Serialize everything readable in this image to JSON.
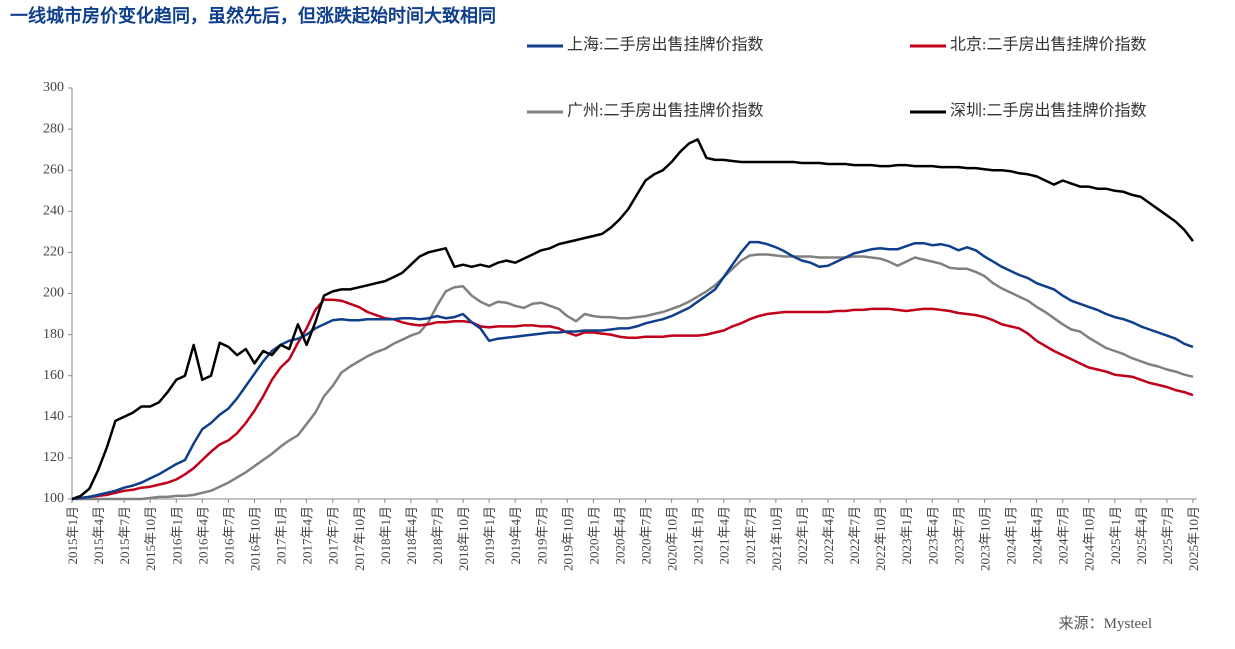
{
  "chart_data": {
    "type": "line",
    "title": "一线城市房价变化趋同，虽然先后，但涨跌起始时间大致相同",
    "source": "来源：Mysteel",
    "categories": [
      "2015年1月",
      null,
      null,
      "2015年4月",
      null,
      null,
      "2015年7月",
      null,
      null,
      "2015年10月",
      null,
      null,
      "2016年1月",
      null,
      null,
      "2016年4月",
      null,
      null,
      "2016年7月",
      null,
      null,
      "2016年10月",
      null,
      null,
      "2017年1月",
      null,
      null,
      "2017年4月",
      null,
      null,
      "2017年7月",
      null,
      null,
      "2017年10月",
      null,
      null,
      "2018年1月",
      null,
      null,
      "2018年4月",
      null,
      null,
      "2018年7月",
      null,
      null,
      "2018年10月",
      null,
      null,
      "2019年1月",
      null,
      null,
      "2019年4月",
      null,
      null,
      "2019年7月",
      null,
      null,
      "2019年10月",
      null,
      null,
      "2020年1月",
      null,
      null,
      "2020年4月",
      null,
      null,
      "2020年7月",
      null,
      null,
      "2020年10月",
      null,
      null,
      "2021年1月",
      null,
      null,
      "2021年4月",
      null,
      null,
      "2021年7月",
      null,
      null,
      "2021年10月",
      null,
      null,
      "2022年1月",
      null,
      null,
      "2022年4月",
      null,
      null,
      "2022年7月",
      null,
      null,
      "2022年10月",
      null,
      null,
      "2023年1月",
      null,
      null,
      "2023年4月",
      null,
      null,
      "2023年7月",
      null,
      null,
      "2023年10月",
      null,
      null,
      "2024年1月",
      null,
      null,
      "2024年4月",
      null,
      null,
      "2024年7月",
      null,
      null,
      "2024年10月",
      null,
      null,
      "2025年1月",
      null,
      null,
      "2025年4月",
      null,
      null,
      "2025年7月",
      null,
      null,
      "2025年10月"
    ],
    "series": [
      {
        "name": "上海:二手房出售挂牌价指数",
        "color": "#0f3f8c",
        "values": [
          100,
          100.5,
          101,
          102,
          103,
          104,
          105.5,
          106.5,
          108,
          110,
          112,
          114.5,
          117,
          119,
          127,
          134,
          137,
          141,
          144,
          149,
          155,
          161,
          167,
          172,
          175,
          177,
          178,
          180,
          183,
          185,
          187,
          187.5,
          187,
          187,
          187.5,
          187.5,
          187.5,
          187.5,
          188,
          188,
          187.5,
          188,
          189,
          188,
          188.5,
          190,
          186,
          183,
          177,
          178,
          178.5,
          179,
          179.5,
          180,
          180.5,
          181,
          181,
          181.5,
          181.5,
          182,
          182,
          182,
          182.5,
          183,
          183,
          184,
          185.5,
          186.5,
          187.5,
          189,
          191,
          193,
          196,
          199,
          202,
          208,
          214,
          220,
          225,
          225,
          224,
          222.5,
          220.5,
          218,
          216,
          215,
          213,
          213.5,
          215.5,
          217.5,
          219.5,
          220.5,
          221.5,
          222,
          221.5,
          221.5,
          223,
          224.5,
          224.5,
          223.5,
          224,
          223,
          221,
          222.5,
          221,
          218,
          215.5,
          213,
          211,
          209,
          207.5,
          205,
          203.5,
          202,
          199,
          196.5,
          195,
          193.5,
          192,
          190,
          188.5,
          187.5,
          186,
          184,
          182.5,
          181,
          179.5,
          178,
          175.5,
          174
        ]
      },
      {
        "name": "北京:二手房出售挂牌价指数",
        "color": "#c0001a",
        "values": [
          100,
          100.5,
          101,
          101.5,
          102,
          103,
          104,
          104.5,
          105.5,
          106,
          107,
          108,
          109.5,
          112,
          115,
          119,
          123,
          126.5,
          128.5,
          132,
          137,
          143,
          150,
          158,
          164,
          168,
          176,
          183,
          192,
          197,
          197,
          196.5,
          195,
          193.5,
          191,
          189.5,
          188,
          187.5,
          186,
          185,
          184.5,
          185,
          186,
          186,
          186.5,
          186.5,
          186,
          184,
          183.5,
          184,
          184,
          184,
          184.5,
          184.5,
          184,
          184,
          183,
          181,
          179.5,
          181,
          181,
          180.5,
          180,
          179,
          178.5,
          178.5,
          179,
          179,
          179,
          179.5,
          179.5,
          179.5,
          179.5,
          180,
          181,
          182,
          184,
          185.5,
          187.5,
          189,
          190,
          190.5,
          191,
          191,
          191,
          191,
          191,
          191,
          191.5,
          191.5,
          192,
          192,
          192.5,
          192.5,
          192.5,
          192,
          191.5,
          192,
          192.5,
          192.5,
          192,
          191.5,
          190.5,
          190,
          189.5,
          188.5,
          187,
          185,
          184,
          183,
          180.5,
          177,
          174.5,
          172,
          170,
          168,
          166,
          164,
          163,
          162,
          160.5,
          160,
          159.5,
          158,
          156.5,
          155.5,
          154.5,
          153,
          152,
          150.5
        ]
      },
      {
        "name": "广州:二手房出售挂牌价指数",
        "color": "#808080",
        "values": [
          100,
          100,
          100,
          100,
          100,
          100,
          100,
          100,
          100,
          100.5,
          101,
          101,
          101.5,
          101.5,
          102,
          103,
          104,
          106,
          108,
          110.5,
          113,
          116,
          119,
          122,
          125.5,
          128.5,
          131,
          136.5,
          142,
          150,
          155,
          161.5,
          164.5,
          167,
          169.5,
          171.5,
          173,
          175.5,
          177.5,
          179.5,
          181,
          186,
          194,
          201,
          203,
          203.5,
          199,
          196,
          194,
          196,
          195.5,
          194,
          193,
          195,
          195.5,
          194,
          192.5,
          189,
          186.5,
          190,
          189,
          188.5,
          188.5,
          188,
          188,
          188.5,
          189,
          190,
          191,
          192.5,
          194,
          196,
          198.5,
          201,
          204,
          208,
          212,
          216,
          218.5,
          219,
          219,
          218.5,
          218,
          218,
          218,
          218,
          217.5,
          217.5,
          217.5,
          217.5,
          218,
          218,
          217.5,
          217,
          215.5,
          213.5,
          215.5,
          217.5,
          216.5,
          215.5,
          214.5,
          212.5,
          212,
          212,
          210.5,
          208.5,
          205,
          202.5,
          200.5,
          198.5,
          196.5,
          193.5,
          191,
          188,
          185,
          182.5,
          181.5,
          178.5,
          176,
          173.5,
          172,
          170.5,
          168.5,
          167,
          165.5,
          164.5,
          163,
          162,
          160.5,
          159.5
        ]
      },
      {
        "name": "深圳:二手房出售挂牌价指数",
        "color": "#000000",
        "values": [
          100,
          101.5,
          105,
          114,
          125,
          138,
          140,
          142,
          145,
          145,
          147,
          152,
          158,
          160,
          175,
          158,
          160,
          176,
          174,
          170,
          173,
          166,
          172,
          170,
          175,
          173,
          185,
          175,
          186,
          199,
          201,
          202,
          202,
          203,
          204,
          205,
          206,
          208,
          210,
          214,
          218,
          220,
          221,
          222,
          213,
          214,
          213,
          214,
          213,
          215,
          216,
          215,
          217,
          219,
          221,
          222,
          224,
          225,
          226,
          227,
          228,
          229,
          232,
          236,
          241,
          248,
          255,
          258,
          260,
          264,
          269,
          273,
          275,
          266,
          265,
          265,
          264.5,
          264,
          264,
          264,
          264,
          264,
          264,
          264,
          263.5,
          263.5,
          263.5,
          263,
          263,
          263,
          262.5,
          262.5,
          262.5,
          262,
          262,
          262.5,
          262.5,
          262,
          262,
          262,
          261.5,
          261.5,
          261.5,
          261,
          261,
          260.5,
          260,
          260,
          259.5,
          258.5,
          258,
          257,
          255,
          253,
          255,
          253.5,
          252,
          252,
          251,
          251,
          250,
          249.5,
          248,
          247,
          244,
          241,
          238,
          235,
          231,
          225.5
        ]
      }
    ],
    "ylim": [
      100,
      300
    ],
    "yticks": [
      100,
      120,
      140,
      160,
      180,
      200,
      220,
      240,
      260,
      280,
      300
    ]
  }
}
